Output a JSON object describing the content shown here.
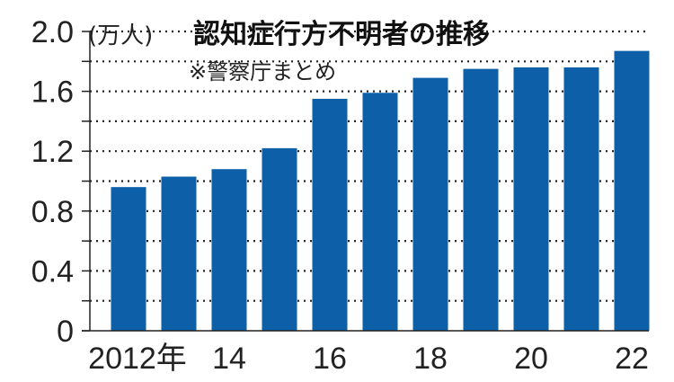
{
  "chart_data": {
    "type": "bar",
    "title": "認知症行方不明者の推移",
    "source": "※警察庁まとめ",
    "unit_label": "(万人)",
    "categories": [
      "2012",
      "2013",
      "2014",
      "2015",
      "2016",
      "2017",
      "2018",
      "2019",
      "2020",
      "2021",
      "2022"
    ],
    "values": [
      0.96,
      1.03,
      1.08,
      1.22,
      1.55,
      1.59,
      1.69,
      1.75,
      1.76,
      1.76,
      1.87
    ],
    "ylim": [
      0,
      2.0
    ],
    "yticks": [
      0,
      0.4,
      0.8,
      1.2,
      1.6,
      2.0
    ],
    "ytick_labels": [
      "0",
      "0.4",
      "0.8",
      "1.2",
      "1.6",
      "2.0"
    ],
    "xtick_labels": [
      "2012年",
      "14",
      "16",
      "18",
      "20",
      "22"
    ],
    "xtick_categories": [
      "2012",
      "2014",
      "2016",
      "2018",
      "2020",
      "2022"
    ],
    "grid": true,
    "bar_color": "#0d5fa8",
    "grid_color": "#222222"
  }
}
